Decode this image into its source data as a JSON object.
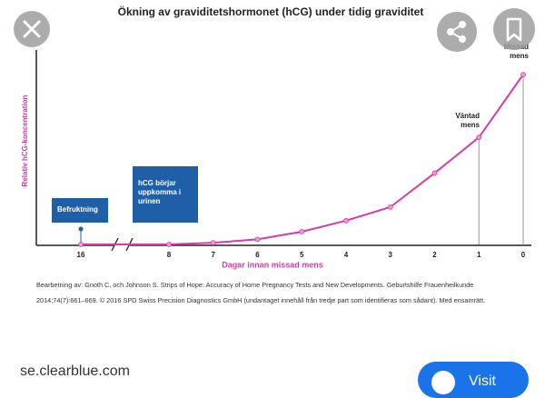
{
  "chart_data": {
    "type": "line",
    "title": "Ökning av graviditetshormonet (hCG) under tidig graviditet",
    "ylabel": "Relativ hCG-koncentration",
    "xlabel": "Dagar innan missad mens",
    "categories": [
      "16",
      "8",
      "7",
      "6",
      "5",
      "4",
      "3",
      "2",
      "1",
      "0"
    ],
    "series": [
      {
        "name": "hCG",
        "color": "#d83ba6",
        "values": [
          0,
          0,
          1,
          3,
          7.5,
          14,
          22,
          42,
          63,
          100
        ]
      }
    ],
    "ylim": [
      0,
      100
    ],
    "annotations": {
      "fertilization": "Befruktning",
      "urine": "hCG börjar uppkomma i urinen",
      "expected": "Väntad mens",
      "missed": "Missad mens"
    }
  },
  "caption": "Bearbetning av: Gnoth C. och Johnson S. Strips of Hope: Accuracy of Home Pregnancy Tests and New Developments. Geburtshilfe Frauenheilkunde 2014;74(7):661–669. © 2016 SPD Swiss Precision Diagnostics GmbH (undantaget innehåll från tredje part som identifieras som sådant). Med ensamrätt.",
  "source": "se.clearblue.com",
  "visit_button": "Visit"
}
